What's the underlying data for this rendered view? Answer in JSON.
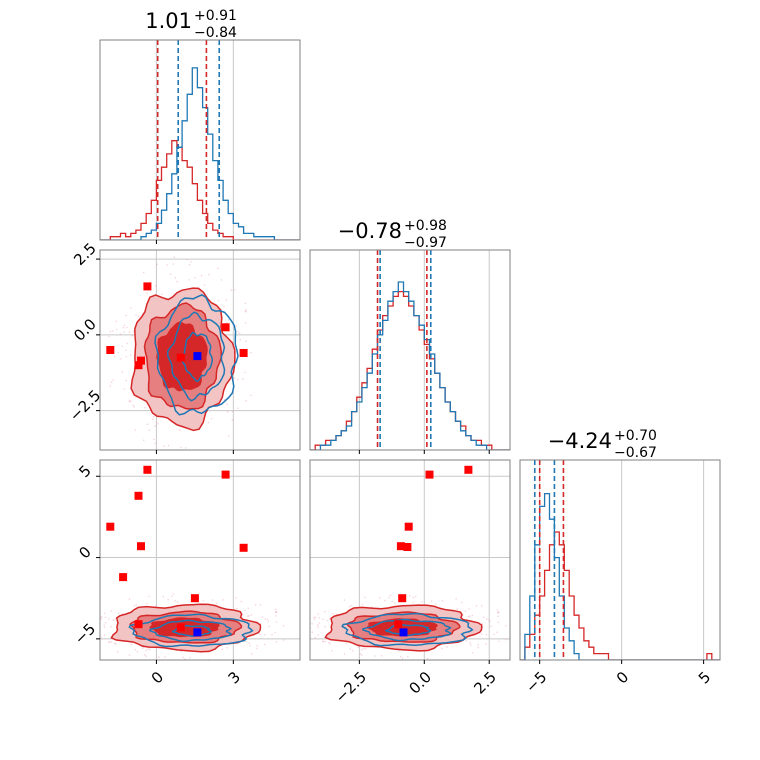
{
  "colors": {
    "red": "#d62728",
    "blue": "#1f77b4",
    "marker_red": "#ff0000",
    "marker_blue": "#0000ff"
  },
  "chart_data": {
    "type": "corner",
    "panels": [
      {
        "id": "p00",
        "kind": "hist",
        "xlim": [
          -2.2,
          5.6
        ],
        "title": {
          "main": "1.01",
          "sup": "+0.91",
          "sub": "−0.84"
        },
        "xgrid": [
          0,
          3
        ],
        "ygrid": [],
        "red_hist": {
          "x0": -2.2,
          "bw": 0.2,
          "counts": [
            0,
            0,
            1,
            1,
            2,
            1,
            2,
            3,
            5,
            8,
            12,
            18,
            22,
            26,
            30,
            28,
            24,
            22,
            17,
            12,
            8,
            5,
            3,
            2,
            1,
            1,
            0,
            0,
            0,
            0,
            0,
            0,
            0,
            0,
            0,
            0,
            0,
            0,
            0
          ]
        },
        "blue_hist": {
          "x0": -2.2,
          "bw": 0.2,
          "counts": [
            0,
            0,
            0,
            0,
            0,
            0,
            0,
            0,
            1,
            2,
            3,
            5,
            9,
            14,
            20,
            28,
            36,
            44,
            52,
            46,
            40,
            32,
            24,
            18,
            12,
            8,
            5,
            4,
            2,
            2,
            1,
            1,
            1,
            1,
            0,
            0,
            0,
            0,
            0
          ]
        },
        "ymax": 58,
        "red_lines": [
          0.05,
          1.95
        ],
        "blue_lines": [
          0.85,
          2.45
        ]
      },
      {
        "id": "p11",
        "kind": "hist",
        "xlim": [
          -4.4,
          3.3
        ],
        "title": {
          "main": "−0.78",
          "sup": "+0.98",
          "sub": "−0.97"
        },
        "xgrid": [
          -2.5,
          0.0,
          2.5
        ],
        "ygrid": [],
        "red_hist": {
          "x0": -4.4,
          "bw": 0.2,
          "counts": [
            0,
            1,
            1,
            2,
            2,
            3,
            4,
            6,
            8,
            11,
            14,
            17,
            21,
            25,
            28,
            30,
            32,
            33,
            32,
            30,
            28,
            25,
            22,
            19,
            16,
            13,
            10,
            8,
            6,
            5,
            3,
            2,
            2,
            1,
            1,
            0,
            0,
            0,
            0
          ]
        },
        "blue_hist": {
          "x0": -4.4,
          "bw": 0.2,
          "counts": [
            0,
            0,
            1,
            1,
            2,
            3,
            4,
            5,
            8,
            10,
            13,
            16,
            20,
            24,
            27,
            31,
            33,
            35,
            33,
            31,
            28,
            26,
            23,
            20,
            16,
            13,
            10,
            8,
            6,
            4,
            3,
            2,
            1,
            1,
            0,
            0,
            0,
            0,
            0
          ]
        },
        "ymax": 40,
        "red_lines": [
          -1.8,
          0.1
        ],
        "blue_lines": [
          -1.7,
          0.25
        ]
      },
      {
        "id": "p22",
        "kind": "hist",
        "xlim": [
          -6.2,
          6.0
        ],
        "title": {
          "main": "−4.24",
          "sup": "+0.70",
          "sub": "−0.67"
        },
        "xgrid": [
          -5,
          0,
          5
        ],
        "ygrid": [],
        "red_hist": {
          "x0": -6.2,
          "bw": 0.3,
          "counts": [
            0,
            2,
            4,
            7,
            10,
            14,
            18,
            20,
            18,
            14,
            10,
            7,
            5,
            3,
            2,
            1,
            1,
            1,
            0,
            0,
            0,
            0,
            0,
            0,
            0,
            0,
            0,
            0,
            0,
            0,
            0,
            0,
            0,
            0,
            0,
            0,
            0,
            0,
            1,
            0,
            0
          ]
        },
        "blue_hist": {
          "x0": -6.2,
          "bw": 0.3,
          "counts": [
            0,
            4,
            10,
            18,
            24,
            26,
            22,
            16,
            10,
            5,
            3,
            1,
            0,
            0,
            0,
            0,
            0,
            0,
            0,
            0,
            0,
            0,
            0,
            0,
            0,
            0,
            0,
            0,
            0,
            0,
            0,
            0,
            0,
            0,
            0,
            0,
            0,
            0,
            0,
            0,
            0
          ]
        },
        "ymax": 30,
        "red_lines": [
          -5.0,
          -3.55
        ],
        "blue_lines": [
          -5.3,
          -4.1
        ]
      },
      {
        "id": "p10",
        "kind": "contour",
        "xlim": [
          -2.2,
          5.6
        ],
        "ylim": [
          -3.8,
          2.8
        ],
        "xgrid": [
          0,
          3
        ],
        "ygrid": [
          -2.5,
          0.0,
          2.5
        ],
        "red_contours": [
          {
            "cx": 1.0,
            "cy": -0.75,
            "rx": 1.95,
            "ry": 2.25
          },
          {
            "cx": 1.0,
            "cy": -0.75,
            "rx": 1.45,
            "ry": 1.7
          },
          {
            "cx": 1.0,
            "cy": -0.75,
            "rx": 0.95,
            "ry": 1.1
          }
        ],
        "blue_contours": [
          {
            "cx": 1.6,
            "cy": -0.7,
            "rx": 1.55,
            "ry": 1.9
          },
          {
            "cx": 1.6,
            "cy": -0.7,
            "rx": 1.05,
            "ry": 1.35
          },
          {
            "cx": 1.6,
            "cy": -0.7,
            "rx": 0.55,
            "ry": 0.75
          }
        ],
        "red_markers": [
          {
            "x": -1.8,
            "y": -0.5
          },
          {
            "x": -0.7,
            "y": -1.0
          },
          {
            "x": -0.6,
            "y": -0.85
          },
          {
            "x": -0.35,
            "y": 1.6
          },
          {
            "x": 0.95,
            "y": -0.75
          },
          {
            "x": 2.7,
            "y": 0.25
          },
          {
            "x": 3.4,
            "y": -0.6
          }
        ],
        "blue_markers": [
          {
            "x": 1.6,
            "y": -0.7
          }
        ]
      },
      {
        "id": "p20",
        "kind": "contour",
        "xlim": [
          -2.2,
          5.6
        ],
        "ylim": [
          -6.3,
          6.0
        ],
        "xgrid": [
          0,
          3
        ],
        "ygrid": [
          -5,
          0,
          5
        ],
        "red_contours": [
          {
            "cx": 1.1,
            "cy": -4.3,
            "rx": 2.8,
            "ry": 1.4
          },
          {
            "cx": 1.1,
            "cy": -4.3,
            "rx": 2.1,
            "ry": 0.95
          },
          {
            "cx": 1.1,
            "cy": -4.3,
            "rx": 1.3,
            "ry": 0.55
          }
        ],
        "blue_contours": [
          {
            "cx": 1.4,
            "cy": -4.5,
            "rx": 2.3,
            "ry": 0.95
          },
          {
            "cx": 1.4,
            "cy": -4.5,
            "rx": 1.5,
            "ry": 0.6
          },
          {
            "cx": 1.4,
            "cy": -4.5,
            "rx": 0.7,
            "ry": 0.3
          }
        ],
        "red_markers": [
          {
            "x": -1.8,
            "y": 1.9
          },
          {
            "x": -1.3,
            "y": -1.2
          },
          {
            "x": -0.7,
            "y": 3.8
          },
          {
            "x": -0.6,
            "y": 0.7
          },
          {
            "x": -0.7,
            "y": -4.1
          },
          {
            "x": -0.35,
            "y": 5.4
          },
          {
            "x": 0.95,
            "y": -4.3
          },
          {
            "x": 1.5,
            "y": -2.5
          },
          {
            "x": 2.7,
            "y": 5.1
          },
          {
            "x": 3.4,
            "y": 0.6
          }
        ],
        "blue_markers": [
          {
            "x": 1.6,
            "y": -4.6
          }
        ]
      },
      {
        "id": "p21",
        "kind": "contour",
        "xlim": [
          -4.4,
          3.3
        ],
        "ylim": [
          -6.3,
          6.0
        ],
        "xgrid": [
          -2.5,
          0.0,
          2.5
        ],
        "ygrid": [
          -5,
          0,
          5
        ],
        "red_contours": [
          {
            "cx": -0.85,
            "cy": -4.3,
            "rx": 2.9,
            "ry": 1.35
          },
          {
            "cx": -0.85,
            "cy": -4.3,
            "rx": 2.1,
            "ry": 0.9
          },
          {
            "cx": -0.85,
            "cy": -4.3,
            "rx": 1.3,
            "ry": 0.5
          }
        ],
        "blue_contours": [
          {
            "cx": -0.6,
            "cy": -4.45,
            "rx": 2.4,
            "ry": 0.95
          },
          {
            "cx": -0.6,
            "cy": -4.45,
            "rx": 1.6,
            "ry": 0.6
          },
          {
            "cx": -0.6,
            "cy": -4.45,
            "rx": 0.8,
            "ry": 0.3
          }
        ],
        "red_markers": [
          {
            "x": -1.0,
            "y": -4.1
          },
          {
            "x": -0.9,
            "y": 0.7
          },
          {
            "x": -0.85,
            "y": -2.5
          },
          {
            "x": -0.6,
            "y": 1.9
          },
          {
            "x": -0.65,
            "y": 0.65
          },
          {
            "x": 0.2,
            "y": 5.1
          },
          {
            "x": 1.7,
            "y": 5.4
          }
        ],
        "blue_markers": [
          {
            "x": -0.8,
            "y": -4.6
          }
        ]
      }
    ],
    "tick_labels": {
      "x_col0": [
        {
          "v": 0,
          "t": "0"
        },
        {
          "v": 3,
          "t": "3"
        }
      ],
      "x_col1": [
        {
          "v": -2.5,
          "t": "−2.5"
        },
        {
          "v": 0.0,
          "t": "0.0"
        },
        {
          "v": 2.5,
          "t": "2.5"
        }
      ],
      "x_col2": [
        {
          "v": -5,
          "t": "−5"
        },
        {
          "v": 0,
          "t": "0"
        },
        {
          "v": 5,
          "t": "5"
        }
      ],
      "y_row1": [
        {
          "v": 2.5,
          "t": "2.5"
        },
        {
          "v": 0.0,
          "t": "0.0"
        },
        {
          "v": -2.5,
          "t": "−2.5"
        }
      ],
      "y_row2": [
        {
          "v": 5,
          "t": "5"
        },
        {
          "v": 0,
          "t": "0"
        },
        {
          "v": -5,
          "t": "−5"
        }
      ]
    }
  }
}
